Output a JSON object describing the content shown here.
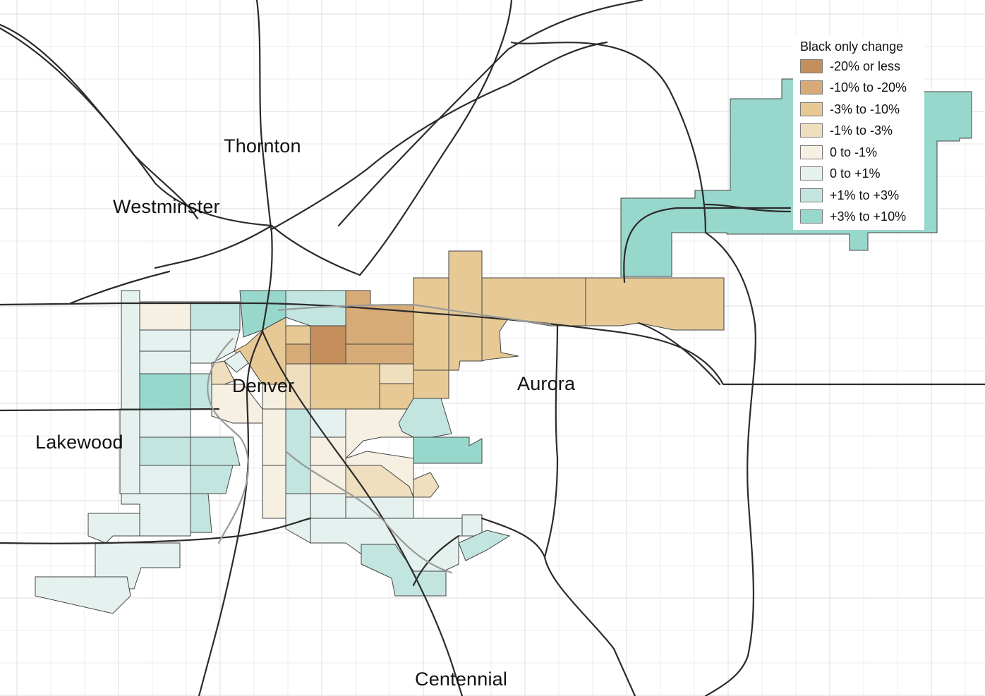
{
  "map": {
    "places": [
      {
        "id": "thornton",
        "name": "Thornton"
      },
      {
        "id": "westminster",
        "name": "Westminster"
      },
      {
        "id": "denver",
        "name": "Denver"
      },
      {
        "id": "aurora",
        "name": "Aurora"
      },
      {
        "id": "lakewood",
        "name": "Lakewood"
      },
      {
        "id": "centennial",
        "name": "Centennial"
      }
    ],
    "legend": {
      "title": "Black only change",
      "items": [
        {
          "label": "-20% or less",
          "color": "#c48f5c"
        },
        {
          "label": "-10% to -20%",
          "color": "#d6ab78"
        },
        {
          "label": "-3% to -10%",
          "color": "#e6c995"
        },
        {
          "label": "-1% to -3%",
          "color": "#f0dfbf"
        },
        {
          "label": "0 to -1%",
          "color": "#f6f0e3"
        },
        {
          "label": "0 to +1%",
          "color": "#e5f1ef"
        },
        {
          "label": "+1% to +3%",
          "color": "#c3e5e0"
        },
        {
          "label": "+3% to +10%",
          "color": "#98d8cc"
        }
      ]
    }
  }
}
